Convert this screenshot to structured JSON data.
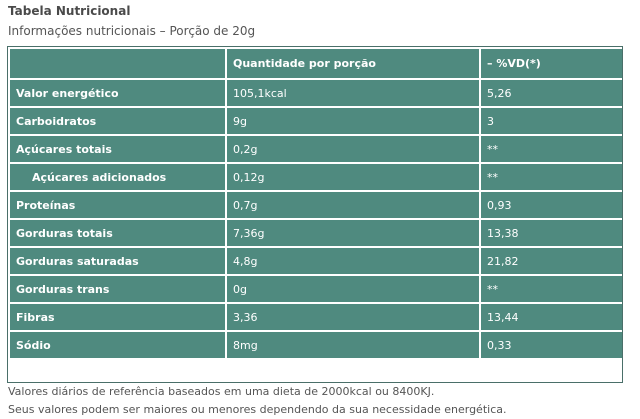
{
  "title": "Tabela Nutricional",
  "subtitle": "Informações nutricionais – Porção de 20g",
  "table": {
    "headers": [
      "",
      "Quantidade por porção",
      "– %VD(*)"
    ],
    "rows": [
      {
        "name": "Valor energético",
        "qty": "105,1kcal",
        "vd": "5,26"
      },
      {
        "name": "Carboidratos",
        "qty": "9g",
        "vd": "3"
      },
      {
        "name": "Açúcares totais",
        "qty": "0,2g",
        "vd": "**"
      },
      {
        "name": "Açúcares adicionados",
        "qty": "0,12g",
        "vd": "**"
      },
      {
        "name": "Proteínas",
        "qty": "0,7g",
        "vd": "0,93"
      },
      {
        "name": "Gorduras totais",
        "qty": "7,36g",
        "vd": "13,38"
      },
      {
        "name": "Gorduras saturadas",
        "qty": "4,8g",
        "vd": "21,82"
      },
      {
        "name": "Gorduras trans",
        "qty": "0g",
        "vd": "**"
      },
      {
        "name": "Fibras",
        "qty": "3,36",
        "vd": "13,44"
      },
      {
        "name": "Sódio",
        "qty": "8mg",
        "vd": "0,33"
      }
    ]
  },
  "footnotes": [
    "Valores diários de referência baseados em uma dieta de 2000kcal ou 8400KJ.",
    "Seus valores podem ser maiores ou menores dependendo da sua necessidade energética."
  ],
  "colors": {
    "cell_background": "#4f8a7f",
    "cell_text": "#ffffff"
  }
}
